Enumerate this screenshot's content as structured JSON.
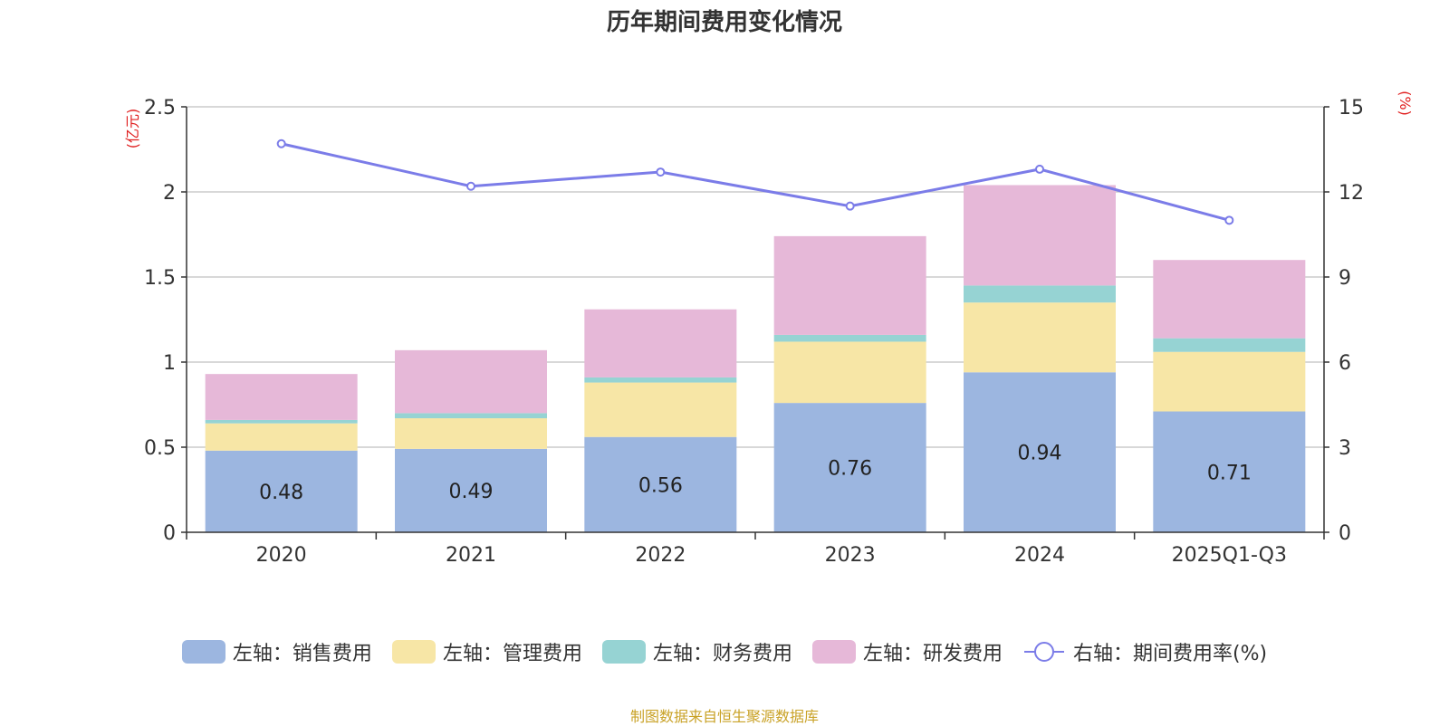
{
  "chart_data": {
    "type": "bar",
    "stacked": true,
    "title": "历年期间费用变化情况",
    "categories": [
      "2020",
      "2021",
      "2022",
      "2023",
      "2024",
      "2025Q1-Q3"
    ],
    "left_axis": {
      "unit_label": "(亿元)",
      "ylim": [
        0,
        2.5
      ],
      "ticks": [
        "0",
        "0.5",
        "1",
        "1.5",
        "2",
        "2.5"
      ]
    },
    "right_axis": {
      "unit_label": "(%)",
      "ylim": [
        0,
        15
      ],
      "ticks": [
        "0",
        "3",
        "6",
        "9",
        "12",
        "15"
      ]
    },
    "series": [
      {
        "name": "左轴：销售费用",
        "axis": "left",
        "color": "#9cb6e0",
        "values": [
          0.48,
          0.49,
          0.56,
          0.76,
          0.94,
          0.71
        ],
        "data_labels": [
          "0.48",
          "0.49",
          "0.56",
          "0.76",
          "0.94",
          "0.71"
        ]
      },
      {
        "name": "左轴：管理费用",
        "axis": "left",
        "color": "#f7e6a6",
        "values": [
          0.16,
          0.18,
          0.32,
          0.36,
          0.41,
          0.35
        ]
      },
      {
        "name": "左轴：财务费用",
        "axis": "left",
        "color": "#96d3d3",
        "values": [
          0.02,
          0.03,
          0.03,
          0.04,
          0.1,
          0.08
        ]
      },
      {
        "name": "左轴：研发费用",
        "axis": "left",
        "color": "#e6b8d8",
        "values": [
          0.27,
          0.37,
          0.4,
          0.58,
          0.59,
          0.46
        ]
      },
      {
        "name": "右轴：期间费用率(%)",
        "axis": "right",
        "type": "line",
        "color": "#7b7ce8",
        "values": [
          13.7,
          12.2,
          12.7,
          11.5,
          12.8,
          11.0
        ]
      }
    ]
  },
  "source_note": "制图数据来自恒生聚源数据库"
}
